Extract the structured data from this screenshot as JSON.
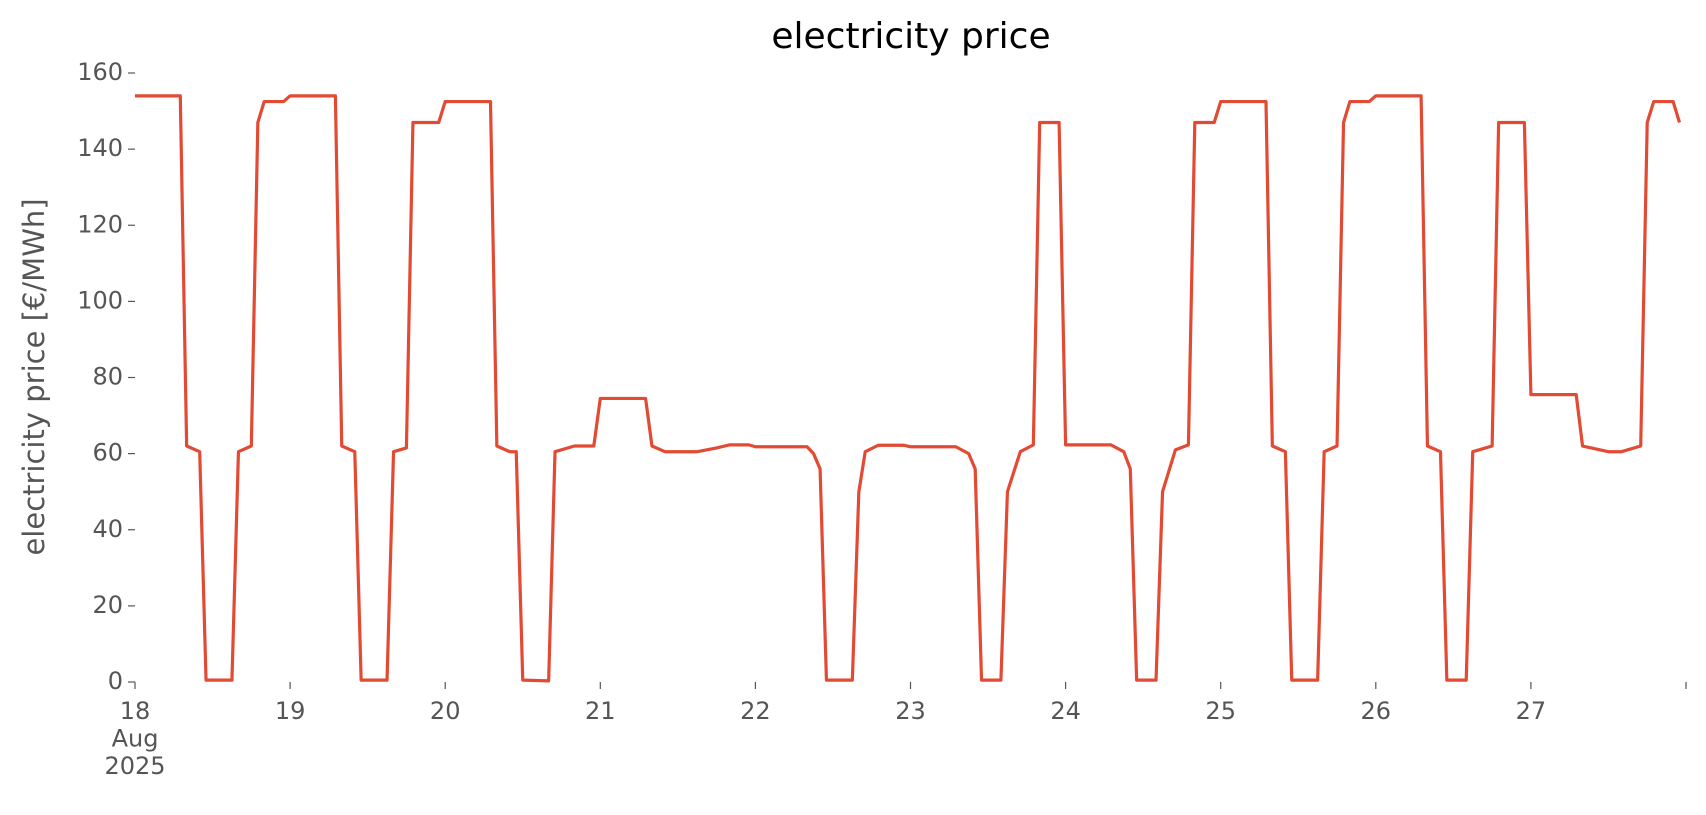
{
  "chart_data": {
    "type": "line",
    "title": "electricity price",
    "y_label": "electricity price [€/MWh]",
    "x": [
      18,
      18.292,
      18.333,
      18.417,
      18.458,
      18.625,
      18.667,
      18.75,
      18.792,
      18.833,
      18.958,
      19,
      19.292,
      19.333,
      19.417,
      19.458,
      19.625,
      19.667,
      19.75,
      19.792,
      19.958,
      20,
      20.292,
      20.333,
      20.417,
      20.458,
      20.5,
      20.667,
      20.708,
      20.833,
      20.958,
      21,
      21.292,
      21.333,
      21.417,
      21.625,
      21.75,
      21.833,
      21.958,
      22,
      22.333,
      22.375,
      22.417,
      22.458,
      22.625,
      22.667,
      22.708,
      22.792,
      22.958,
      23,
      23.292,
      23.375,
      23.417,
      23.458,
      23.583,
      23.625,
      23.708,
      23.792,
      23.833,
      23.958,
      24,
      24.292,
      24.375,
      24.417,
      24.458,
      24.583,
      24.625,
      24.708,
      24.792,
      24.833,
      24.958,
      25,
      25.292,
      25.333,
      25.417,
      25.458,
      25.625,
      25.667,
      25.75,
      25.792,
      25.833,
      25.958,
      26,
      26.292,
      26.333,
      26.417,
      26.458,
      26.583,
      26.625,
      26.75,
      26.792,
      26.958,
      27,
      27.292,
      27.333,
      27.5,
      27.583,
      27.708,
      27.75,
      27.792,
      27.917,
      27.958
    ],
    "series": [
      {
        "name": "electricity price",
        "color": "#e24a33",
        "values": [
          154,
          154,
          62,
          60.5,
          0.5,
          0.5,
          60.5,
          62,
          147,
          152.5,
          152.5,
          154,
          154,
          62,
          60.5,
          0.5,
          0.5,
          60.5,
          61.5,
          147,
          147,
          152.5,
          152.5,
          62,
          60.5,
          60.5,
          0.5,
          0.3,
          60.5,
          62,
          62,
          74.5,
          74.5,
          62,
          60.5,
          60.5,
          61.5,
          62.3,
          62.3,
          61.8,
          61.8,
          60,
          56,
          0.5,
          0.5,
          50,
          60.5,
          62.2,
          62.2,
          61.8,
          61.8,
          60,
          56,
          0.5,
          0.5,
          50,
          60.5,
          62.3,
          147,
          147,
          62.3,
          62.3,
          60.5,
          56,
          0.5,
          0.5,
          50,
          61,
          62.3,
          147,
          147,
          152.5,
          152.5,
          62,
          60.5,
          0.5,
          0.5,
          60.5,
          62,
          147,
          152.5,
          152.5,
          154,
          154,
          62,
          60.5,
          0.5,
          0.5,
          60.5,
          62,
          147,
          147,
          75.5,
          75.5,
          62,
          60.5,
          60.5,
          62,
          147,
          152.5,
          152.5,
          147
        ]
      }
    ],
    "xlim": [
      18,
      28
    ],
    "xticks": [
      {
        "value": 18,
        "label": "18\nAug\n2025"
      },
      19,
      20,
      21,
      22,
      23,
      24,
      25,
      26,
      27,
      {
        "value": 28,
        "label": null
      }
    ],
    "ylim": [
      0,
      160
    ],
    "yticks": [
      0,
      20,
      40,
      60,
      80,
      100,
      120,
      140,
      160
    ],
    "grid": false
  }
}
